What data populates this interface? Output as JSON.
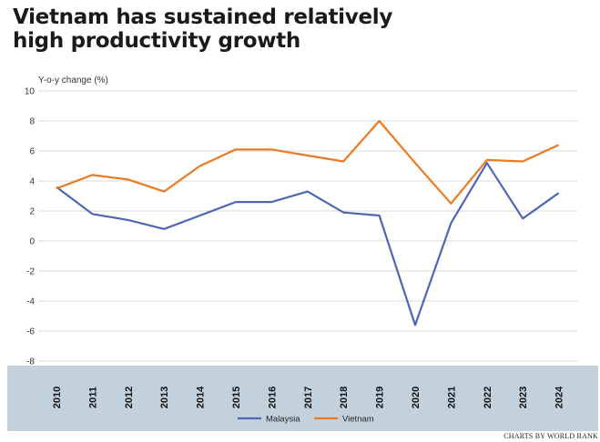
{
  "title_lines": [
    "Vietnam has sustained relatively",
    "high productivity growth"
  ],
  "credit": "CHARTS BY WORLD BANK",
  "colors": {
    "malaysia": "#4d67b3",
    "vietnam": "#ec7a23",
    "band": "#c3d1dd",
    "grid": "#d8d8d8"
  },
  "chart_data": {
    "type": "line",
    "ylabel": "Y-o-y change (%)",
    "ylim": [
      -8,
      10
    ],
    "yticks": [
      10,
      8,
      6,
      4,
      2,
      0,
      -2,
      -4,
      -6,
      -8
    ],
    "ytick_labels": [
      "10",
      "8",
      "6",
      "4",
      "2",
      "0",
      "-2",
      "-4",
      "-6",
      "-8"
    ],
    "grid": true,
    "legend_position": "bottom-center",
    "x": [
      "2010",
      "2011",
      "2012",
      "2013",
      "2014",
      "2015",
      "2016",
      "2017",
      "2018",
      "2019",
      "2020",
      "2021",
      "2022",
      "2023",
      "2024"
    ],
    "series": [
      {
        "name": "Malaysia",
        "values": [
          3.6,
          1.8,
          1.4,
          0.8,
          1.7,
          2.6,
          2.6,
          3.3,
          1.9,
          1.7,
          -5.6,
          1.2,
          5.2,
          1.5,
          3.2
        ]
      },
      {
        "name": "Vietnam",
        "values": [
          3.5,
          4.4,
          4.1,
          3.3,
          5.0,
          6.1,
          6.1,
          5.7,
          5.3,
          8.0,
          5.2,
          2.5,
          5.4,
          5.3,
          6.4
        ]
      }
    ]
  }
}
